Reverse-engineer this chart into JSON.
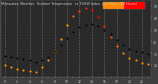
{
  "title": "Milwaukee Weather  Outdoor Temperature",
  "subtitle": "vs THSW Index  per Hour  (24 Hours)",
  "hours": [
    0,
    1,
    2,
    3,
    4,
    5,
    6,
    7,
    8,
    9,
    10,
    11,
    12,
    13,
    14,
    15,
    16,
    17,
    18,
    19,
    20,
    21,
    22,
    23
  ],
  "temp": [
    28,
    27,
    26,
    25,
    24,
    23,
    24,
    27,
    32,
    37,
    43,
    48,
    52,
    54,
    55,
    53,
    50,
    46,
    41,
    37,
    34,
    32,
    31,
    29
  ],
  "thsw": [
    20,
    18,
    17,
    16,
    15,
    14,
    18,
    24,
    32,
    42,
    54,
    62,
    66,
    68,
    67,
    61,
    53,
    44,
    36,
    30,
    26,
    24,
    22,
    21
  ],
  "temp_color": "#000000",
  "background": "#404040",
  "plot_bg": "#2a2a2a",
  "grid_color": "#888888",
  "ylim_min": 10,
  "ylim_max": 75,
  "yticks": [
    20,
    30,
    40,
    50,
    60,
    70
  ],
  "legend_orange": "#ff8800",
  "legend_red": "#ff0000",
  "thsw_colors": [
    "#ff8800",
    "#ff8800",
    "#ff8800",
    "#ff8800",
    "#ff8800",
    "#ff8800",
    "#ff8800",
    "#ff8800",
    "#ff8800",
    "#ff9900",
    "#ffaa00",
    "#ff6600",
    "#ff4400",
    "#ff2200",
    "#ff0000",
    "#ff0000",
    "#ff2200",
    "#ff4400",
    "#ff6600",
    "#ff8800",
    "#ff8800",
    "#ff8800",
    "#ff8800",
    "#ff8800"
  ]
}
